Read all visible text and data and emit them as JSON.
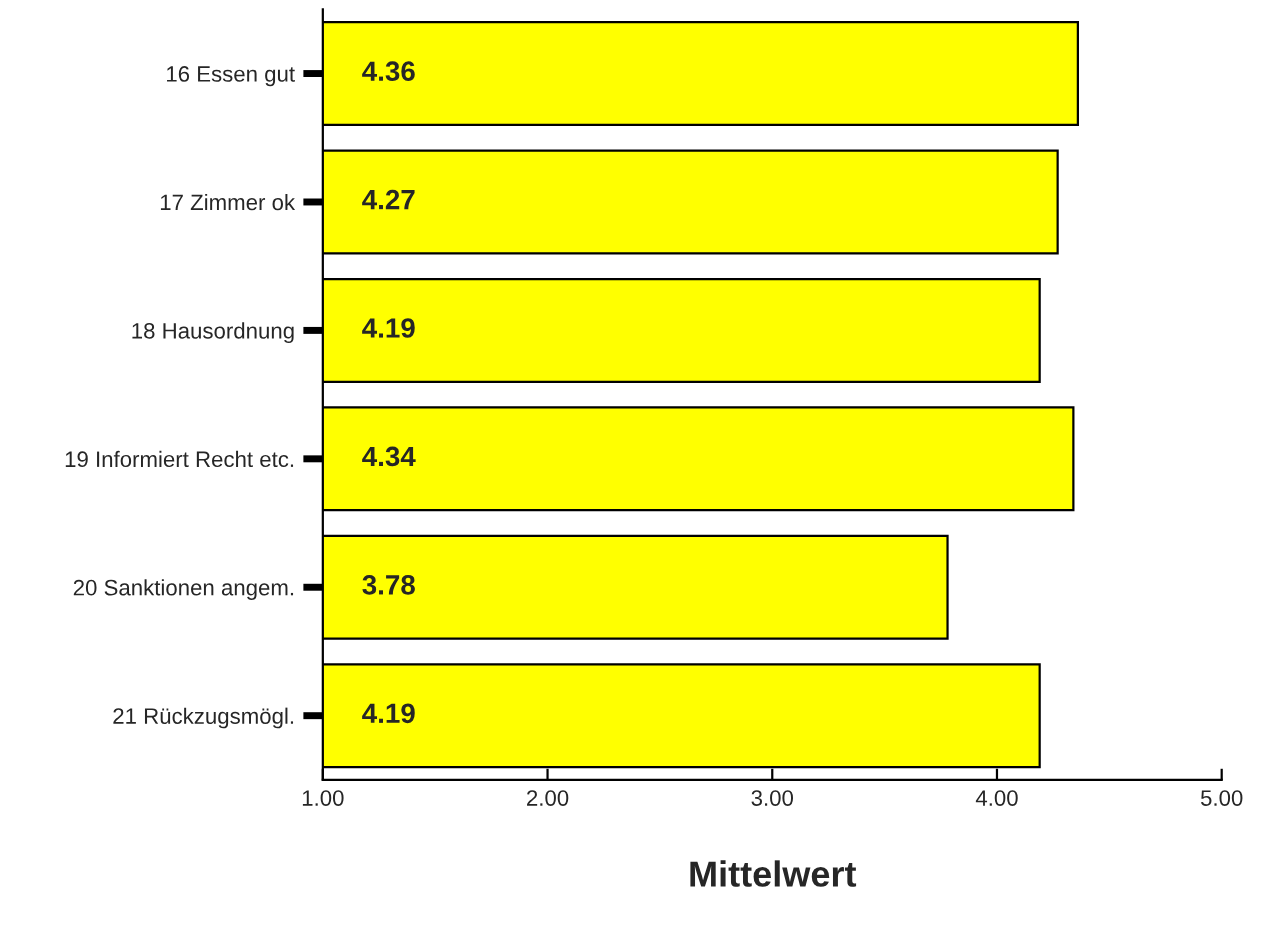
{
  "chart_data": {
    "type": "bar",
    "orientation": "horizontal",
    "xlabel": "Mittelwert",
    "categories": [
      "16 Essen gut",
      "17 Zimmer ok",
      "18 Hausordnung",
      "19 Informiert Recht etc.",
      "20 Sanktionen angem.",
      "21 Rückzugsmögl."
    ],
    "values": [
      4.36,
      4.27,
      4.19,
      4.34,
      3.78,
      4.19
    ],
    "color": "#ffff00",
    "xlim": [
      1,
      5
    ],
    "xticks": [
      {
        "value": 1,
        "label": "1.00"
      },
      {
        "value": 2,
        "label": "2.00"
      },
      {
        "value": 3,
        "label": "3.00"
      },
      {
        "value": 4,
        "label": "4.00"
      },
      {
        "value": 5,
        "label": "5.00"
      }
    ],
    "data_labels": true,
    "grid": false,
    "legend": false
  }
}
